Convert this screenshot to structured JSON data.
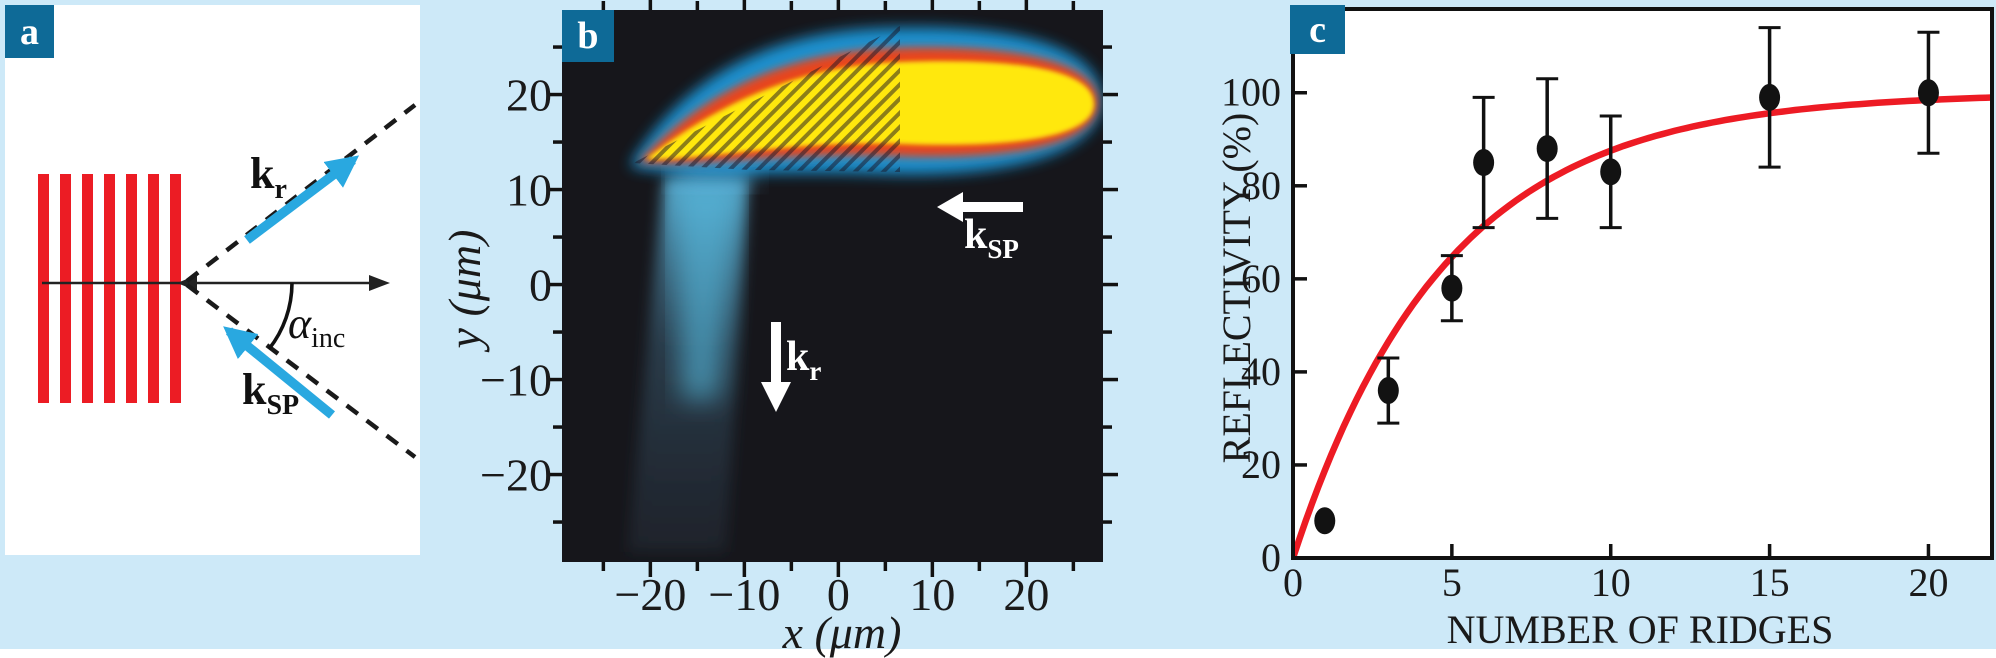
{
  "figure": {
    "background_color": "#cde9f8",
    "panel_tag_color": "#0e6a97",
    "panels": {
      "a": {
        "label": "a"
      },
      "b": {
        "label": "b"
      },
      "c": {
        "label": "c"
      }
    }
  },
  "panel_a": {
    "ridge_count": 7,
    "ridge_color": "#ec1c24",
    "wavevector_arrow_color": "#29a8e0",
    "labels": {
      "k_reflected": {
        "base": "k",
        "sub": "r"
      },
      "k_surface_plasmon": {
        "base": "k",
        "sub": "SP"
      },
      "incidence_angle": {
        "base": "α",
        "sub": "inc"
      }
    }
  },
  "panel_b": {
    "x_axis": {
      "title": "x (μm)",
      "tick_values": [
        -20,
        -10,
        0,
        10,
        20
      ],
      "tick_labels": [
        "−20",
        "−10",
        "0",
        "10",
        "20"
      ],
      "minor_tick_values": [
        -25,
        -15,
        -5,
        5,
        15,
        25
      ],
      "range_um": [
        -29.4,
        28.6
      ]
    },
    "y_axis": {
      "title": "y (μm)",
      "tick_values": [
        20,
        10,
        0,
        -10,
        -20
      ],
      "tick_labels": [
        "20",
        "10",
        "0",
        "−10",
        "−20"
      ],
      "minor_tick_values": [
        25,
        15,
        5,
        -5,
        -15,
        -25
      ],
      "range_um": [
        -29.2,
        28.9
      ]
    },
    "annotations": {
      "k_surface_plasmon": {
        "base": "k",
        "sub": "SP"
      },
      "k_reflected": {
        "base": "k",
        "sub": "r"
      }
    },
    "beam_colors": {
      "core": "#ffe80a",
      "mid": "#e8441f",
      "halo": "#1f9ce0",
      "background": "#16161b"
    }
  },
  "chart_data": {
    "type": "scatter",
    "title": "",
    "xlabel": "NUMBER OF RIDGES",
    "ylabel": "REFLECTIVITY (%)",
    "xlim": [
      0,
      22
    ],
    "ylim": [
      0,
      118
    ],
    "x_ticks": [
      0,
      5,
      10,
      15,
      20
    ],
    "x_tick_labels": [
      "0",
      "5",
      "10",
      "15",
      "20"
    ],
    "y_ticks": [
      0,
      20,
      40,
      60,
      80,
      100
    ],
    "y_tick_labels": [
      "0",
      "20",
      "40",
      "60",
      "80",
      "100"
    ],
    "grid": false,
    "legend": null,
    "marker_color": "#121212",
    "points": [
      {
        "x": 1,
        "y": 8,
        "err": 0
      },
      {
        "x": 3,
        "y": 36,
        "err": 7
      },
      {
        "x": 5,
        "y": 58,
        "err": 7
      },
      {
        "x": 6,
        "y": 85,
        "err": 14
      },
      {
        "x": 8,
        "y": 88,
        "err": 15
      },
      {
        "x": 10,
        "y": 83,
        "err": 12
      },
      {
        "x": 15,
        "y": 99,
        "err": 15
      },
      {
        "x": 20,
        "y": 100,
        "err": 13
      }
    ],
    "fit_curve": {
      "type": "saturating_exponential",
      "r_max": 100,
      "tau": 4.8,
      "color": "#ed1b24"
    }
  }
}
